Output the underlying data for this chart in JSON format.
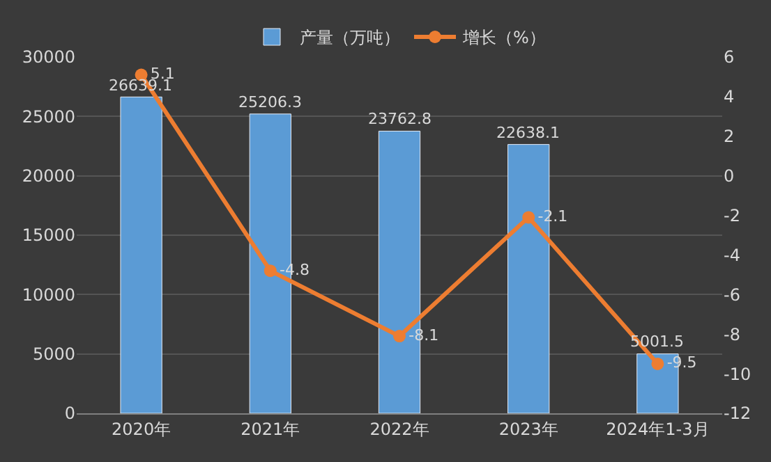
{
  "chart_data": {
    "type": "bar",
    "categories": [
      "2020年",
      "2021年",
      "2022年",
      "2023年",
      "2024年1-3月"
    ],
    "series": [
      {
        "name": "产量（万吨）",
        "color": "#5b9bd5",
        "values": [
          26639.1,
          25206.3,
          23762.8,
          22638.1,
          5001.5
        ]
      },
      {
        "name": "增长（%）",
        "type": "line",
        "axis": "y2",
        "color": "#ed7d31",
        "values": [
          5.1,
          -4.8,
          -8.1,
          -2.1,
          -9.5
        ]
      }
    ],
    "ylim": [
      0,
      30000
    ],
    "yticks": [
      0,
      5000,
      10000,
      15000,
      20000,
      25000,
      30000
    ],
    "y2lim": [
      -12,
      6
    ],
    "y2ticks": [
      -12,
      -10,
      -8,
      -6,
      -4,
      -2,
      0,
      2,
      4,
      6
    ],
    "data_labels": true,
    "grid": "y",
    "legend": "top",
    "marker": "circle",
    "line_style": "solid"
  }
}
